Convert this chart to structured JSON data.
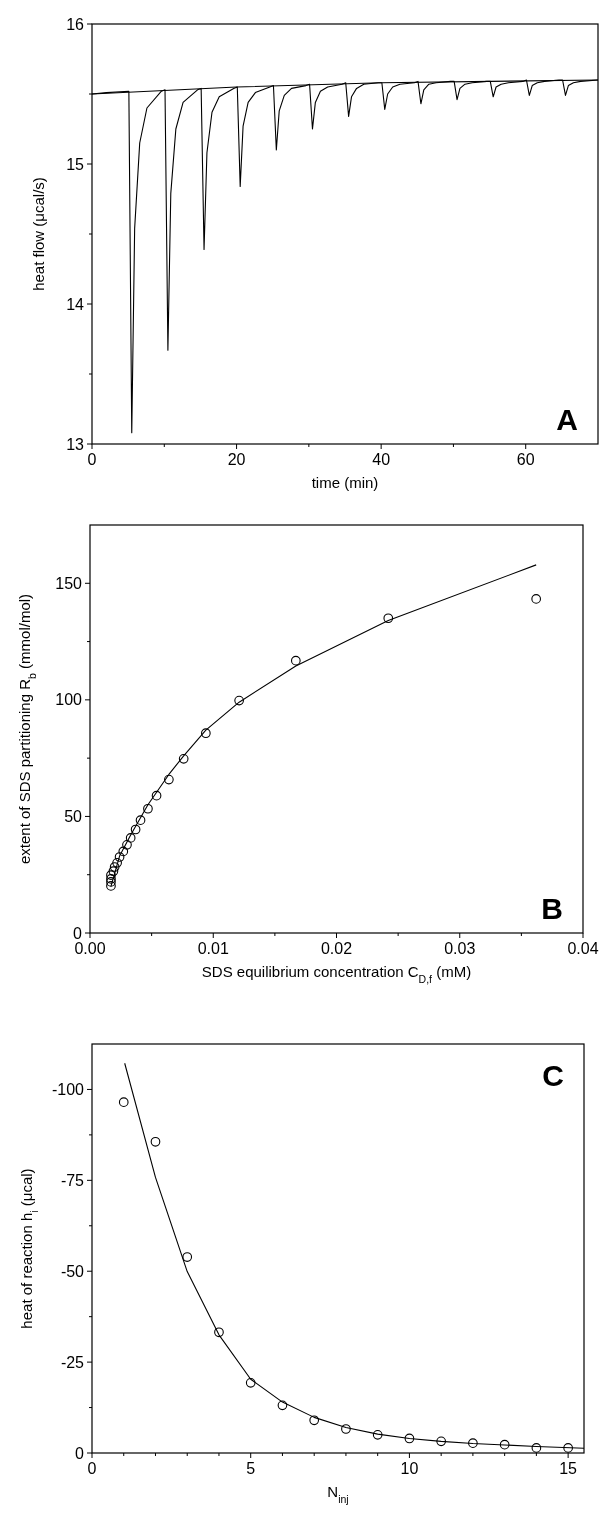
{
  "chart_data": [
    {
      "type": "line",
      "xlabel": "time  (min)",
      "ylabel": "heat flow  (μcal/s)",
      "annotations": [
        "A"
      ],
      "xlim": [
        0,
        70
      ],
      "xticks": [
        0,
        {
          "value": 10,
          "label": null
        },
        20,
        {
          "value": 30,
          "label": null
        },
        40,
        {
          "value": 50,
          "label": null
        },
        60
      ],
      "ylim": [
        13,
        16
      ],
      "yticks": [
        13,
        {
          "value": 13.5,
          "label": null
        },
        14,
        {
          "value": 14.5,
          "label": null
        },
        15,
        {
          "value": 15.5,
          "label": null
        },
        16
      ],
      "grid": false,
      "line_style": "solid",
      "series": [
        {
          "color": "#000000",
          "x": [
            0,
            2,
            5.1,
            5.5,
            5.9,
            6.6,
            7.6,
            9.6,
            10.1,
            10.5,
            10.9,
            11.6,
            12.6,
            14.6,
            15.1,
            15.5,
            15.9,
            16.6,
            17.6,
            19.6,
            20.1,
            20.5,
            20.9,
            21.6,
            22.6,
            24.6,
            25.1,
            25.5,
            25.9,
            26.6,
            27.6,
            29.6,
            30.1,
            30.5,
            30.9,
            31.6,
            32.6,
            34.6,
            35.1,
            35.5,
            35.9,
            36.6,
            37.6,
            39.6,
            40.1,
            40.5,
            40.9,
            41.6,
            42.6,
            44.6,
            45.1,
            45.5,
            45.9,
            46.6,
            47.6,
            49.6,
            50.1,
            50.5,
            50.9,
            51.6,
            52.6,
            54.6,
            55.1,
            55.5,
            55.9,
            56.6,
            57.6,
            59.6,
            60.1,
            60.5,
            60.9,
            61.6,
            62.6,
            64.6,
            65.1,
            65.5,
            65.9,
            66.6,
            67.6,
            70
          ],
          "values": [
            15.5,
            15.51,
            15.52,
            13.08,
            14.54,
            15.15,
            15.4,
            15.52,
            15.53,
            13.67,
            14.79,
            15.25,
            15.44,
            15.53,
            15.54,
            14.39,
            15.08,
            15.37,
            15.48,
            15.54,
            15.55,
            14.84,
            15.27,
            15.44,
            15.51,
            15.55,
            15.56,
            15.1,
            15.38,
            15.49,
            15.54,
            15.56,
            15.57,
            15.25,
            15.44,
            15.52,
            15.55,
            15.57,
            15.58,
            15.34,
            15.48,
            15.54,
            15.57,
            15.58,
            15.58,
            15.39,
            15.5,
            15.55,
            15.57,
            15.58,
            15.59,
            15.43,
            15.53,
            15.57,
            15.58,
            15.59,
            15.59,
            15.46,
            15.54,
            15.57,
            15.58,
            15.59,
            15.59,
            15.48,
            15.55,
            15.57,
            15.58,
            15.59,
            15.6,
            15.49,
            15.56,
            15.58,
            15.59,
            15.6,
            15.6,
            15.49,
            15.56,
            15.58,
            15.59,
            15.6
          ]
        },
        {
          "color": "#000000",
          "x": [
            0,
            20,
            40,
            70
          ],
          "values": [
            15.5,
            15.55,
            15.58,
            15.6
          ]
        }
      ]
    },
    {
      "type": "scatter",
      "xlabel": "SDS equilibrium concentration C$_{D,f}$  (mM)",
      "ylabel": "extent of SDS partitioning R$_{b}$  (mmol/mol)",
      "annotations": [
        "B"
      ],
      "xlim": [
        0,
        0.04
      ],
      "xticks": [
        {
          "value": 0,
          "label": "0.00"
        },
        {
          "value": 0.005,
          "label": null
        },
        {
          "value": 0.01,
          "label": "0.01"
        },
        {
          "value": 0.015,
          "label": null
        },
        {
          "value": 0.02,
          "label": "0.02"
        },
        {
          "value": 0.025,
          "label": null
        },
        {
          "value": 0.03,
          "label": "0.03"
        },
        {
          "value": 0.035,
          "label": null
        },
        {
          "value": 0.04,
          "label": "0.04"
        }
      ],
      "ylim": [
        0,
        175
      ],
      "yticks": [
        0,
        {
          "value": 25,
          "label": null
        },
        50,
        {
          "value": 75,
          "label": null
        },
        100,
        {
          "value": 125,
          "label": null
        },
        150
      ],
      "grid": false,
      "series": [
        {
          "color": "#000000",
          "marker": "circle",
          "x": [
            0.0362,
            0.0242,
            0.0167,
            0.0121,
            0.0094,
            0.0076,
            0.0064,
            0.0054,
            0.0047,
            0.0041,
            0.0037,
            0.0033,
            0.003,
            0.0027,
            0.0024,
            0.0022,
            0.002,
            0.0019,
            0.0017,
            0.0017,
            0.0017,
            0.0017
          ],
          "values": [
            143.3,
            135,
            116.8,
            99.7,
            85.7,
            74.7,
            65.8,
            58.9,
            53.3,
            48.4,
            44.4,
            40.8,
            37.8,
            35,
            32.6,
            30.1,
            28.3,
            26.5,
            24.8,
            23.2,
            21.9,
            20.2
          ]
        },
        {
          "type": "line",
          "color": "#000000",
          "marker": "none",
          "x": [
            0.0017,
            0.0024,
            0.0033,
            0.0047,
            0.0064,
            0.0076,
            0.0094,
            0.0121,
            0.0167,
            0.0242,
            0.0362
          ],
          "values": [
            20,
            33,
            42,
            55,
            68,
            76,
            87,
            99,
            114.5,
            134,
            157.9
          ]
        }
      ]
    },
    {
      "type": "scatter",
      "xlabel": "N$_{inj}$",
      "ylabel": "heat of reaction h$_{i}$  (μcal)",
      "annotations": [
        "C"
      ],
      "xlim": [
        0,
        15.5
      ],
      "xticks": [
        0,
        {
          "value": 1,
          "label": null
        },
        {
          "value": 2,
          "label": null
        },
        {
          "value": 3,
          "label": null
        },
        {
          "value": 4,
          "label": null
        },
        5,
        {
          "value": 6,
          "label": null
        },
        {
          "value": 7,
          "label": null
        },
        {
          "value": 8,
          "label": null
        },
        {
          "value": 9,
          "label": null
        },
        10,
        {
          "value": 11,
          "label": null
        },
        {
          "value": 12,
          "label": null
        },
        {
          "value": 13,
          "label": null
        },
        {
          "value": 14,
          "label": null
        },
        15
      ],
      "ylim": [
        0,
        -112.5
      ],
      "yticks": [
        0,
        {
          "value": -12.5,
          "label": null
        },
        -25,
        {
          "value": -37.5,
          "label": null
        },
        -50,
        {
          "value": -62.5,
          "label": null
        },
        -75,
        {
          "value": -87.5,
          "label": null
        },
        -100
      ],
      "grid": false,
      "series": [
        {
          "color": "#000000",
          "marker": "circle",
          "x": [
            1,
            2,
            3,
            4,
            5,
            6,
            7,
            8,
            9,
            10,
            11,
            12,
            13,
            14,
            15
          ],
          "values": [
            -96.5,
            -85.6,
            -53.9,
            -33.2,
            -19.3,
            -13.1,
            -9,
            -6.6,
            -5,
            -4,
            -3.2,
            -2.7,
            -2.3,
            -1.4,
            -1.4
          ]
        },
        {
          "type": "line",
          "color": "#000000",
          "marker": "none",
          "x": [
            1.03,
            2,
            3,
            4,
            5,
            6,
            7,
            8,
            9,
            10,
            11,
            12,
            13,
            14,
            15.5
          ],
          "values": [
            -107.2,
            -75.8,
            -49.9,
            -32.5,
            -20.3,
            -14,
            -9.8,
            -7,
            -5.2,
            -4,
            -3.2,
            -2.6,
            -2.2,
            -1.8,
            -1.3
          ]
        }
      ]
    }
  ]
}
